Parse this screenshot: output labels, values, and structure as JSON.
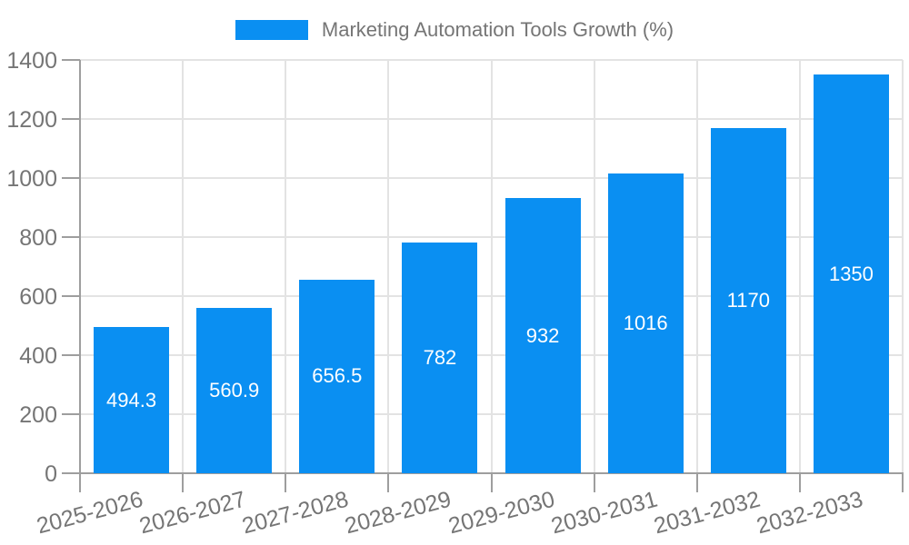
{
  "chart_data": {
    "type": "bar",
    "title": "Marketing Automation Tools Growth (%)",
    "categories": [
      "2025-2026",
      "2026-2027",
      "2027-2028",
      "2028-2029",
      "2029-2030",
      "2030-2031",
      "2031-2032",
      "2032-2033"
    ],
    "values": [
      494.3,
      560.9,
      656.5,
      782,
      932,
      1016,
      1170,
      1350
    ],
    "value_labels": [
      "494.3",
      "560.9",
      "656.5",
      "782",
      "932",
      "1016",
      "1170",
      "1350"
    ],
    "xlabel": "",
    "ylabel": "",
    "ylim": [
      0,
      1400
    ],
    "yticks": [
      0,
      200,
      400,
      600,
      800,
      1000,
      1200,
      1400
    ],
    "grid": true,
    "legend_position": "top-center",
    "colors": {
      "bar": "#0a8ff2",
      "bar_label": "#ffffff",
      "axis_text": "#757575",
      "grid_line": "#e3e3e3",
      "axis_line": "#9e9e9e",
      "background": "#ffffff"
    }
  }
}
